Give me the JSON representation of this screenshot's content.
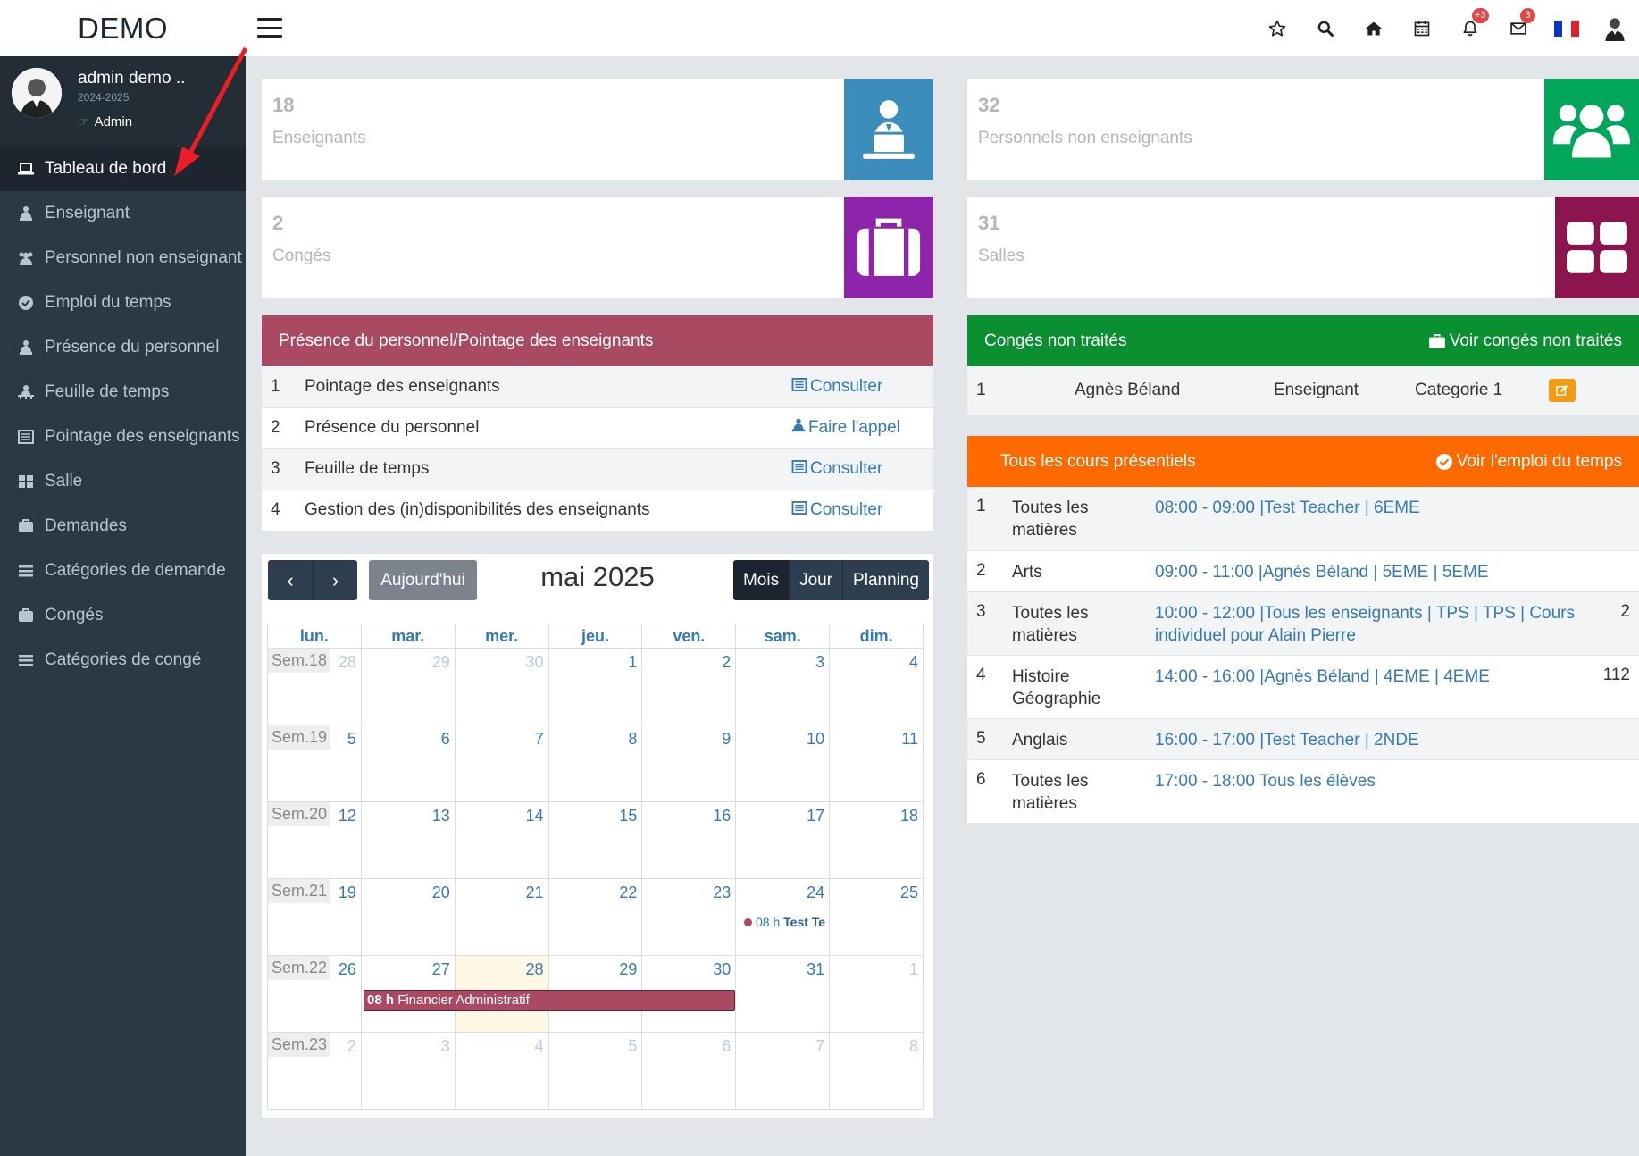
{
  "app": {
    "logo": "DEMO"
  },
  "topbar": {
    "icons": [
      "star-icon",
      "search-icon",
      "home-icon",
      "calendar-icon",
      "bell-icon",
      "envelope-icon",
      "flag-fr-icon",
      "user-avatar-icon"
    ],
    "notifications_badge": "+3",
    "messages_badge": "3"
  },
  "user": {
    "name": "admin demo ..",
    "year": "2024-2025",
    "role": "Admin"
  },
  "sidebar": {
    "items": [
      {
        "label": "Tableau de bord",
        "icon": "laptop-icon",
        "active": true
      },
      {
        "label": "Enseignant",
        "icon": "teacher-icon"
      },
      {
        "label": "Personnel non enseignant",
        "icon": "users-icon"
      },
      {
        "label": "Emploi du temps",
        "icon": "clock-icon"
      },
      {
        "label": "Présence du personnel",
        "icon": "teacher-icon"
      },
      {
        "label": "Feuille de temps",
        "icon": "sitemap-icon"
      },
      {
        "label": "Pointage des enseignants",
        "icon": "list-alt-icon"
      },
      {
        "label": "Salle",
        "icon": "grid-icon"
      },
      {
        "label": "Demandes",
        "icon": "briefcase-icon"
      },
      {
        "label": "Catégories de demande",
        "icon": "bars-icon"
      },
      {
        "label": "Congés",
        "icon": "briefcase-icon"
      },
      {
        "label": "Catégories de congé",
        "icon": "bars-icon"
      }
    ]
  },
  "stats": [
    {
      "count": "18",
      "label": "Enseignants",
      "color": "#3c8dbc",
      "icon": "teacher-icon"
    },
    {
      "count": "32",
      "label": "Personnels non enseignants",
      "color": "#00a65a",
      "icon": "users-icon"
    },
    {
      "count": "2",
      "label": "Congés",
      "color": "#8e24aa",
      "icon": "briefcase-icon"
    },
    {
      "count": "31",
      "label": "Salles",
      "color": "#8c1550",
      "icon": "grid-icon"
    }
  ],
  "presence_panel": {
    "title": "Présence du personnel/Pointage des enseignants",
    "color": "#a94a62",
    "rows": [
      {
        "n": "1",
        "label": "Pointage des enseignants",
        "action": "Consulter"
      },
      {
        "n": "2",
        "label": "Présence du personnel",
        "action": "Faire l'appel"
      },
      {
        "n": "3",
        "label": "Feuille de temps",
        "action": "Consulter"
      },
      {
        "n": "4",
        "label": "Gestion des (in)disponibilités des enseignants",
        "action": "Consulter"
      }
    ]
  },
  "leave_panel": {
    "title": "Congés non traités",
    "link": "Voir congés non traités",
    "color": "#0a8f31",
    "rows": [
      {
        "n": "1",
        "name": "Agnès Béland",
        "type": "Enseignant",
        "category": "Categorie 1"
      }
    ]
  },
  "courses_panel": {
    "title": "Tous les cours présentiels",
    "link": "Voir l'emploi du temps",
    "color": "#ff6a00",
    "rows": [
      {
        "n": "1",
        "subject": "Toutes les matières",
        "detail": "08:00 - 09:00 |Test Teacher | 6EME",
        "extra": ""
      },
      {
        "n": "2",
        "subject": "Arts",
        "detail": "09:00 - 11:00 |Agnès Béland | 5EME | 5EME",
        "extra": ""
      },
      {
        "n": "3",
        "subject": "Toutes les matières",
        "detail": "10:00 - 12:00 |Tous les enseignants | TPS | TPS | Cours individuel pour Alain Pierre",
        "extra": "2"
      },
      {
        "n": "4",
        "subject": "Histoire Géographie",
        "detail": "14:00 - 16:00 |Agnès Béland | 4EME | 4EME",
        "extra": "112"
      },
      {
        "n": "5",
        "subject": "Anglais",
        "detail": "16:00 - 17:00 |Test Teacher | 2NDE",
        "extra": ""
      },
      {
        "n": "6",
        "subject": "Toutes les matières",
        "detail": "17:00 - 18:00 Tous les élèves",
        "extra": ""
      }
    ]
  },
  "calendar": {
    "title": "mai 2025",
    "today_label": "Aujourd'hui",
    "views": [
      "Mois",
      "Jour",
      "Planning"
    ],
    "active_view": "Mois",
    "weekdays": [
      "lun.",
      "mar.",
      "mer.",
      "jeu.",
      "ven.",
      "sam.",
      "dim."
    ],
    "weeks": [
      {
        "label": "Sem.18",
        "days": [
          "28",
          "29",
          "30",
          "1",
          "2",
          "3",
          "4"
        ],
        "other": [
          true,
          true,
          true,
          false,
          false,
          false,
          false
        ]
      },
      {
        "label": "Sem.19",
        "days": [
          "5",
          "6",
          "7",
          "8",
          "9",
          "10",
          "11"
        ],
        "other": [
          false,
          false,
          false,
          false,
          false,
          false,
          false
        ]
      },
      {
        "label": "Sem.20",
        "days": [
          "12",
          "13",
          "14",
          "15",
          "16",
          "17",
          "18"
        ],
        "other": [
          false,
          false,
          false,
          false,
          false,
          false,
          false
        ]
      },
      {
        "label": "Sem.21",
        "days": [
          "19",
          "20",
          "21",
          "22",
          "23",
          "24",
          "25"
        ],
        "other": [
          false,
          false,
          false,
          false,
          false,
          false,
          false
        ]
      },
      {
        "label": "Sem.22",
        "days": [
          "26",
          "27",
          "28",
          "29",
          "30",
          "31",
          "1"
        ],
        "other": [
          false,
          false,
          false,
          false,
          false,
          false,
          true
        ]
      },
      {
        "label": "Sem.23",
        "days": [
          "2",
          "3",
          "4",
          "5",
          "6",
          "7",
          "8"
        ],
        "other": [
          true,
          true,
          true,
          true,
          true,
          true,
          true
        ]
      }
    ],
    "today": {
      "week": 4,
      "day": 2
    },
    "events": [
      {
        "week": 3,
        "start_day": 5,
        "span": 1,
        "time": "08 h",
        "title": "Test Te",
        "style": "dot"
      },
      {
        "week": 4,
        "start_day": 1,
        "span": 4,
        "time": "08 h",
        "title": "Financier Administratif",
        "style": "bar"
      }
    ]
  }
}
